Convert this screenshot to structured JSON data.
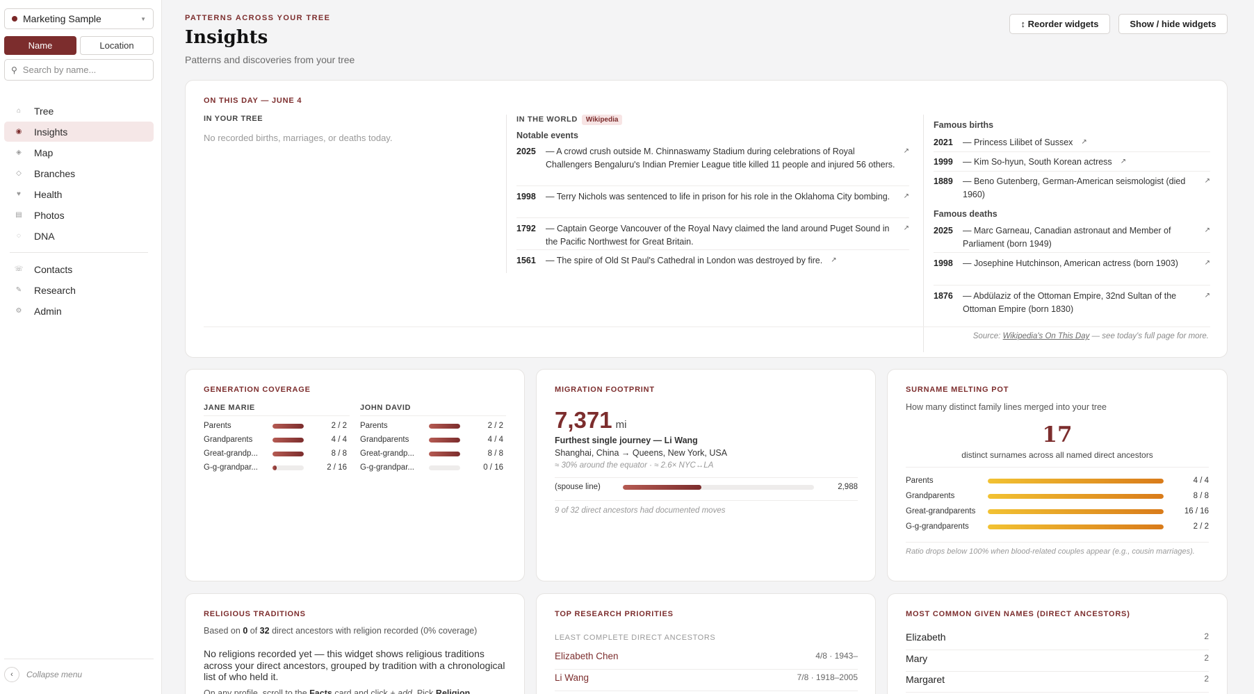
{
  "sidebar": {
    "tree_name": "Marketing Sample",
    "mode_tabs": [
      "Name",
      "Location"
    ],
    "search_placeholder": "Search by name...",
    "nav_main": [
      {
        "label": "Tree",
        "icon": "home-icon"
      },
      {
        "label": "Insights",
        "icon": "insights-icon",
        "active": true
      },
      {
        "label": "Map",
        "icon": "map-icon"
      },
      {
        "label": "Branches",
        "icon": "branches-icon"
      },
      {
        "label": "Health",
        "icon": "heart-icon"
      },
      {
        "label": "Photos",
        "icon": "photos-icon"
      },
      {
        "label": "DNA",
        "icon": "dna-icon"
      }
    ],
    "nav_secondary": [
      {
        "label": "Contacts",
        "icon": "contacts-icon"
      },
      {
        "label": "Research",
        "icon": "research-icon"
      },
      {
        "label": "Admin",
        "icon": "admin-icon"
      }
    ],
    "collapse_label": "Collapse menu"
  },
  "header": {
    "eyebrow": "PATTERNS ACROSS YOUR TREE",
    "title": "Insights",
    "subtitle": "Patterns and discoveries from your tree",
    "reorder_label": "↕ Reorder widgets",
    "showhide_label": "Show / hide widgets"
  },
  "on_this_day": {
    "title": "ON THIS DAY — JUNE 4",
    "tree_label": "IN YOUR TREE",
    "tree_empty": "No recorded births, marriages, or deaths today.",
    "world_label": "IN THE WORLD",
    "wiki_badge": "Wikipedia",
    "events_label": "Notable events",
    "events": [
      {
        "year": "2025",
        "text": "— A crowd crush outside M. Chinnaswamy Stadium during celebrations of Royal Challengers Bengaluru's Indian Premier League title killed 11 people and injured 56 others."
      },
      {
        "year": "1998",
        "text": "— Terry Nichols was sentenced to life in prison for his role in the Oklahoma City bombing."
      },
      {
        "year": "1792",
        "text": "— Captain George Vancouver of the Royal Navy claimed the land around Puget Sound in the Pacific Northwest for Great Britain."
      },
      {
        "year": "1561",
        "text": "— The spire of Old St Paul's Cathedral in London was destroyed by fire."
      }
    ],
    "births_label": "Famous births",
    "births": [
      {
        "year": "2021",
        "text": "— Princess Lilibet of Sussex"
      },
      {
        "year": "1999",
        "text": "— Kim So-hyun, South Korean actress"
      },
      {
        "year": "1889",
        "text": "— Beno Gutenberg, German-American seismologist (died 1960)"
      }
    ],
    "deaths_label": "Famous deaths",
    "deaths": [
      {
        "year": "2025",
        "text": "— Marc Garneau, Canadian astronaut and Member of Parliament (born 1949)"
      },
      {
        "year": "1998",
        "text": "— Josephine Hutchinson, American actress (born 1903)"
      },
      {
        "year": "1876",
        "text": "— Abdülaziz of the Ottoman Empire, 32nd Sultan of the Ottoman Empire (born 1830)"
      }
    ],
    "source_prefix": "Source:",
    "source_link": "Wikipedia's On This Day",
    "source_suffix": "— see today's full page for more.",
    "ext_icon": "↗"
  },
  "generation_coverage": {
    "title": "GENERATION COVERAGE",
    "people": [
      {
        "name": "JANE MARIE",
        "rows": [
          {
            "label": "Parents",
            "count": "2 / 2",
            "fill": 1.0
          },
          {
            "label": "Grandparents",
            "count": "4 / 4",
            "fill": 1.0
          },
          {
            "label": "Great-grandp...",
            "count": "8 / 8",
            "fill": 1.0
          },
          {
            "label": "G-g-grandpar...",
            "count": "2 / 16",
            "fill": 0.125
          }
        ]
      },
      {
        "name": "JOHN DAVID",
        "rows": [
          {
            "label": "Parents",
            "count": "2 / 2",
            "fill": 1.0
          },
          {
            "label": "Grandparents",
            "count": "4 / 4",
            "fill": 1.0
          },
          {
            "label": "Great-grandp...",
            "count": "8 / 8",
            "fill": 1.0
          },
          {
            "label": "G-g-grandpar...",
            "count": "0 / 16",
            "fill": 0.0
          }
        ]
      }
    ]
  },
  "migration": {
    "title": "MIGRATION FOOTPRINT",
    "distance": "7,371",
    "unit": "mi",
    "furthest": "Furthest single journey — Li Wang",
    "route": "Shanghai, China → Queens, New York, USA",
    "comparison": "≈ 30% around the equator · ≈ 2.6× NYC↔LA",
    "line_label": "(spouse line)",
    "line_value": "2,988",
    "line_fill": 0.41,
    "footnote": "9 of 32 direct ancestors had documented moves"
  },
  "surname": {
    "title": "SURNAME MELTING POT",
    "description": "How many distinct family lines merged into your tree",
    "count": "17",
    "count_caption": "distinct surnames across all named direct ancestors",
    "rows": [
      {
        "label": "Parents",
        "count": "4 / 4",
        "fill": 1.0
      },
      {
        "label": "Grandparents",
        "count": "8 / 8",
        "fill": 1.0
      },
      {
        "label": "Great-grandparents",
        "count": "16 / 16",
        "fill": 1.0
      },
      {
        "label": "G-g-grandparents",
        "count": "2 / 2",
        "fill": 1.0
      }
    ],
    "footnote": "Ratio drops below 100% when blood-related couples appear (e.g., cousin marriages)."
  },
  "religion": {
    "title": "RELIGIOUS TRADITIONS",
    "based_prefix": "Based on",
    "based_num": "0",
    "based_mid": "of",
    "based_total": "32",
    "based_suffix": "direct ancestors with religion recorded (0% coverage)",
    "body": "No religions recorded yet — this widget shows religious traditions across your direct ancestors, grouped by tradition with a chronological list of who held it.",
    "hint_prefix": "On any profile, scroll to the",
    "hint_facts": "Facts",
    "hint_mid": "card and click",
    "hint_add": "+ add",
    "hint_pick": ". Pick",
    "hint_religion": "Religion"
  },
  "research": {
    "title": "TOP RESEARCH PRIORITIES",
    "sublabel": "LEAST COMPLETE DIRECT ANCESTORS",
    "rows": [
      {
        "name": "Elizabeth Chen",
        "meta": "4/8 · 1943–"
      },
      {
        "name": "Li Wang",
        "meta": "7/8 · 1918–2005"
      }
    ]
  },
  "given_names": {
    "title": "MOST COMMON GIVEN NAMES (DIRECT ANCESTORS)",
    "rows": [
      {
        "name": "Elizabeth",
        "count": "2"
      },
      {
        "name": "Mary",
        "count": "2"
      },
      {
        "name": "Margaret",
        "count": "2"
      }
    ]
  },
  "colors": {
    "accent": "#7c2d2d",
    "gold": "#e6a020"
  }
}
